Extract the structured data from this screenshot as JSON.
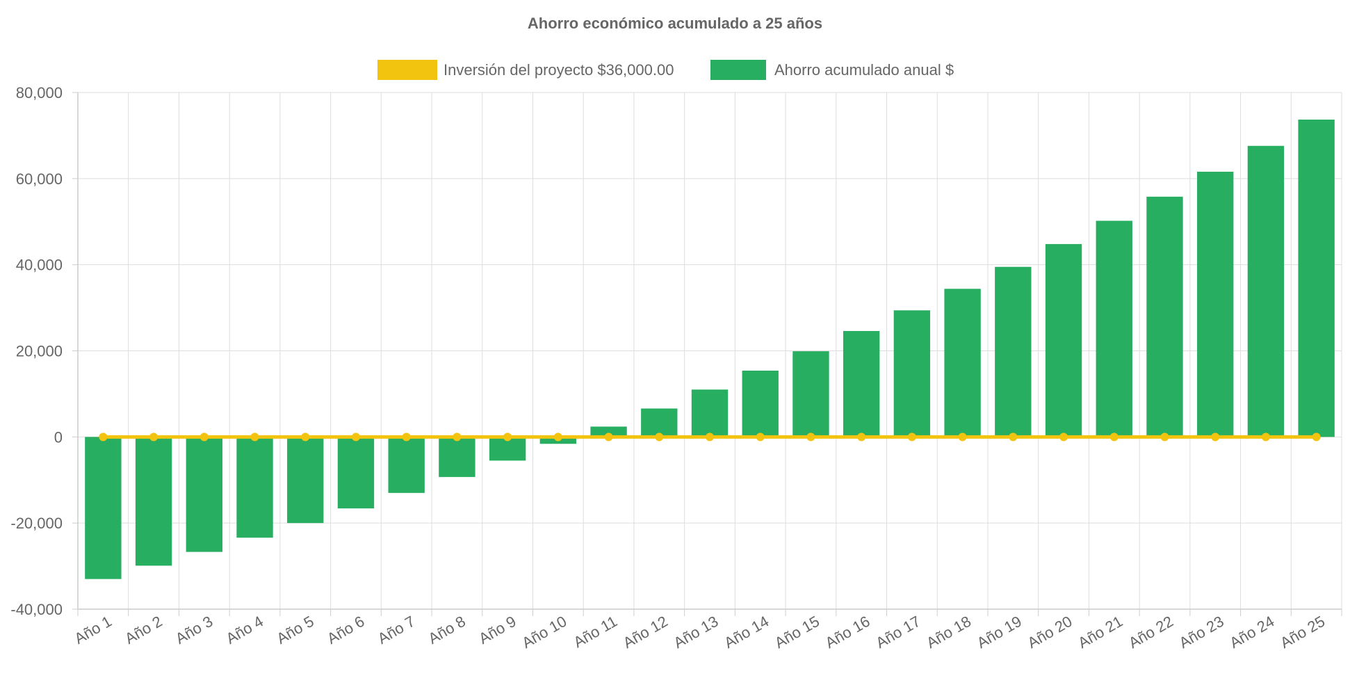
{
  "chart_data": {
    "type": "bar",
    "title": "Ahorro económico acumulado a 25 años",
    "legend_position": "top-center",
    "grid": true,
    "ylim": [
      -40000,
      80000
    ],
    "y_ticks": [
      80000,
      60000,
      40000,
      20000,
      0,
      -20000,
      -40000
    ],
    "y_tick_labels": [
      "80,000",
      "60,000",
      "40,000",
      "20,000",
      "0",
      "-20,000",
      "-40,000"
    ],
    "categories": [
      "Año 1",
      "Año 2",
      "Año 3",
      "Año 4",
      "Año 5",
      "Año 6",
      "Año 7",
      "Año 8",
      "Año 9",
      "Año 10",
      "Año 11",
      "Año 12",
      "Año 13",
      "Año 14",
      "Año 15",
      "Año 16",
      "Año 17",
      "Año 18",
      "Año 19",
      "Año 20",
      "Año 21",
      "Año 22",
      "Año 23",
      "Año 24",
      "Año 25"
    ],
    "series": [
      {
        "name": "Inversión del proyecto $36,000.00",
        "type": "line",
        "color": "#f2c40f",
        "values": [
          0,
          0,
          0,
          0,
          0,
          0,
          0,
          0,
          0,
          0,
          0,
          0,
          0,
          0,
          0,
          0,
          0,
          0,
          0,
          0,
          0,
          0,
          0,
          0,
          0
        ]
      },
      {
        "name": "Ahorro acumulado anual $",
        "type": "bar",
        "color": "#27ae60",
        "values": [
          -33000,
          -29900,
          -26700,
          -23400,
          -20000,
          -16600,
          -13000,
          -9300,
          -5500,
          -1600,
          2400,
          6600,
          11000,
          15400,
          19900,
          24600,
          29400,
          34400,
          39500,
          44800,
          50200,
          55800,
          61600,
          67600,
          73700
        ]
      }
    ]
  }
}
